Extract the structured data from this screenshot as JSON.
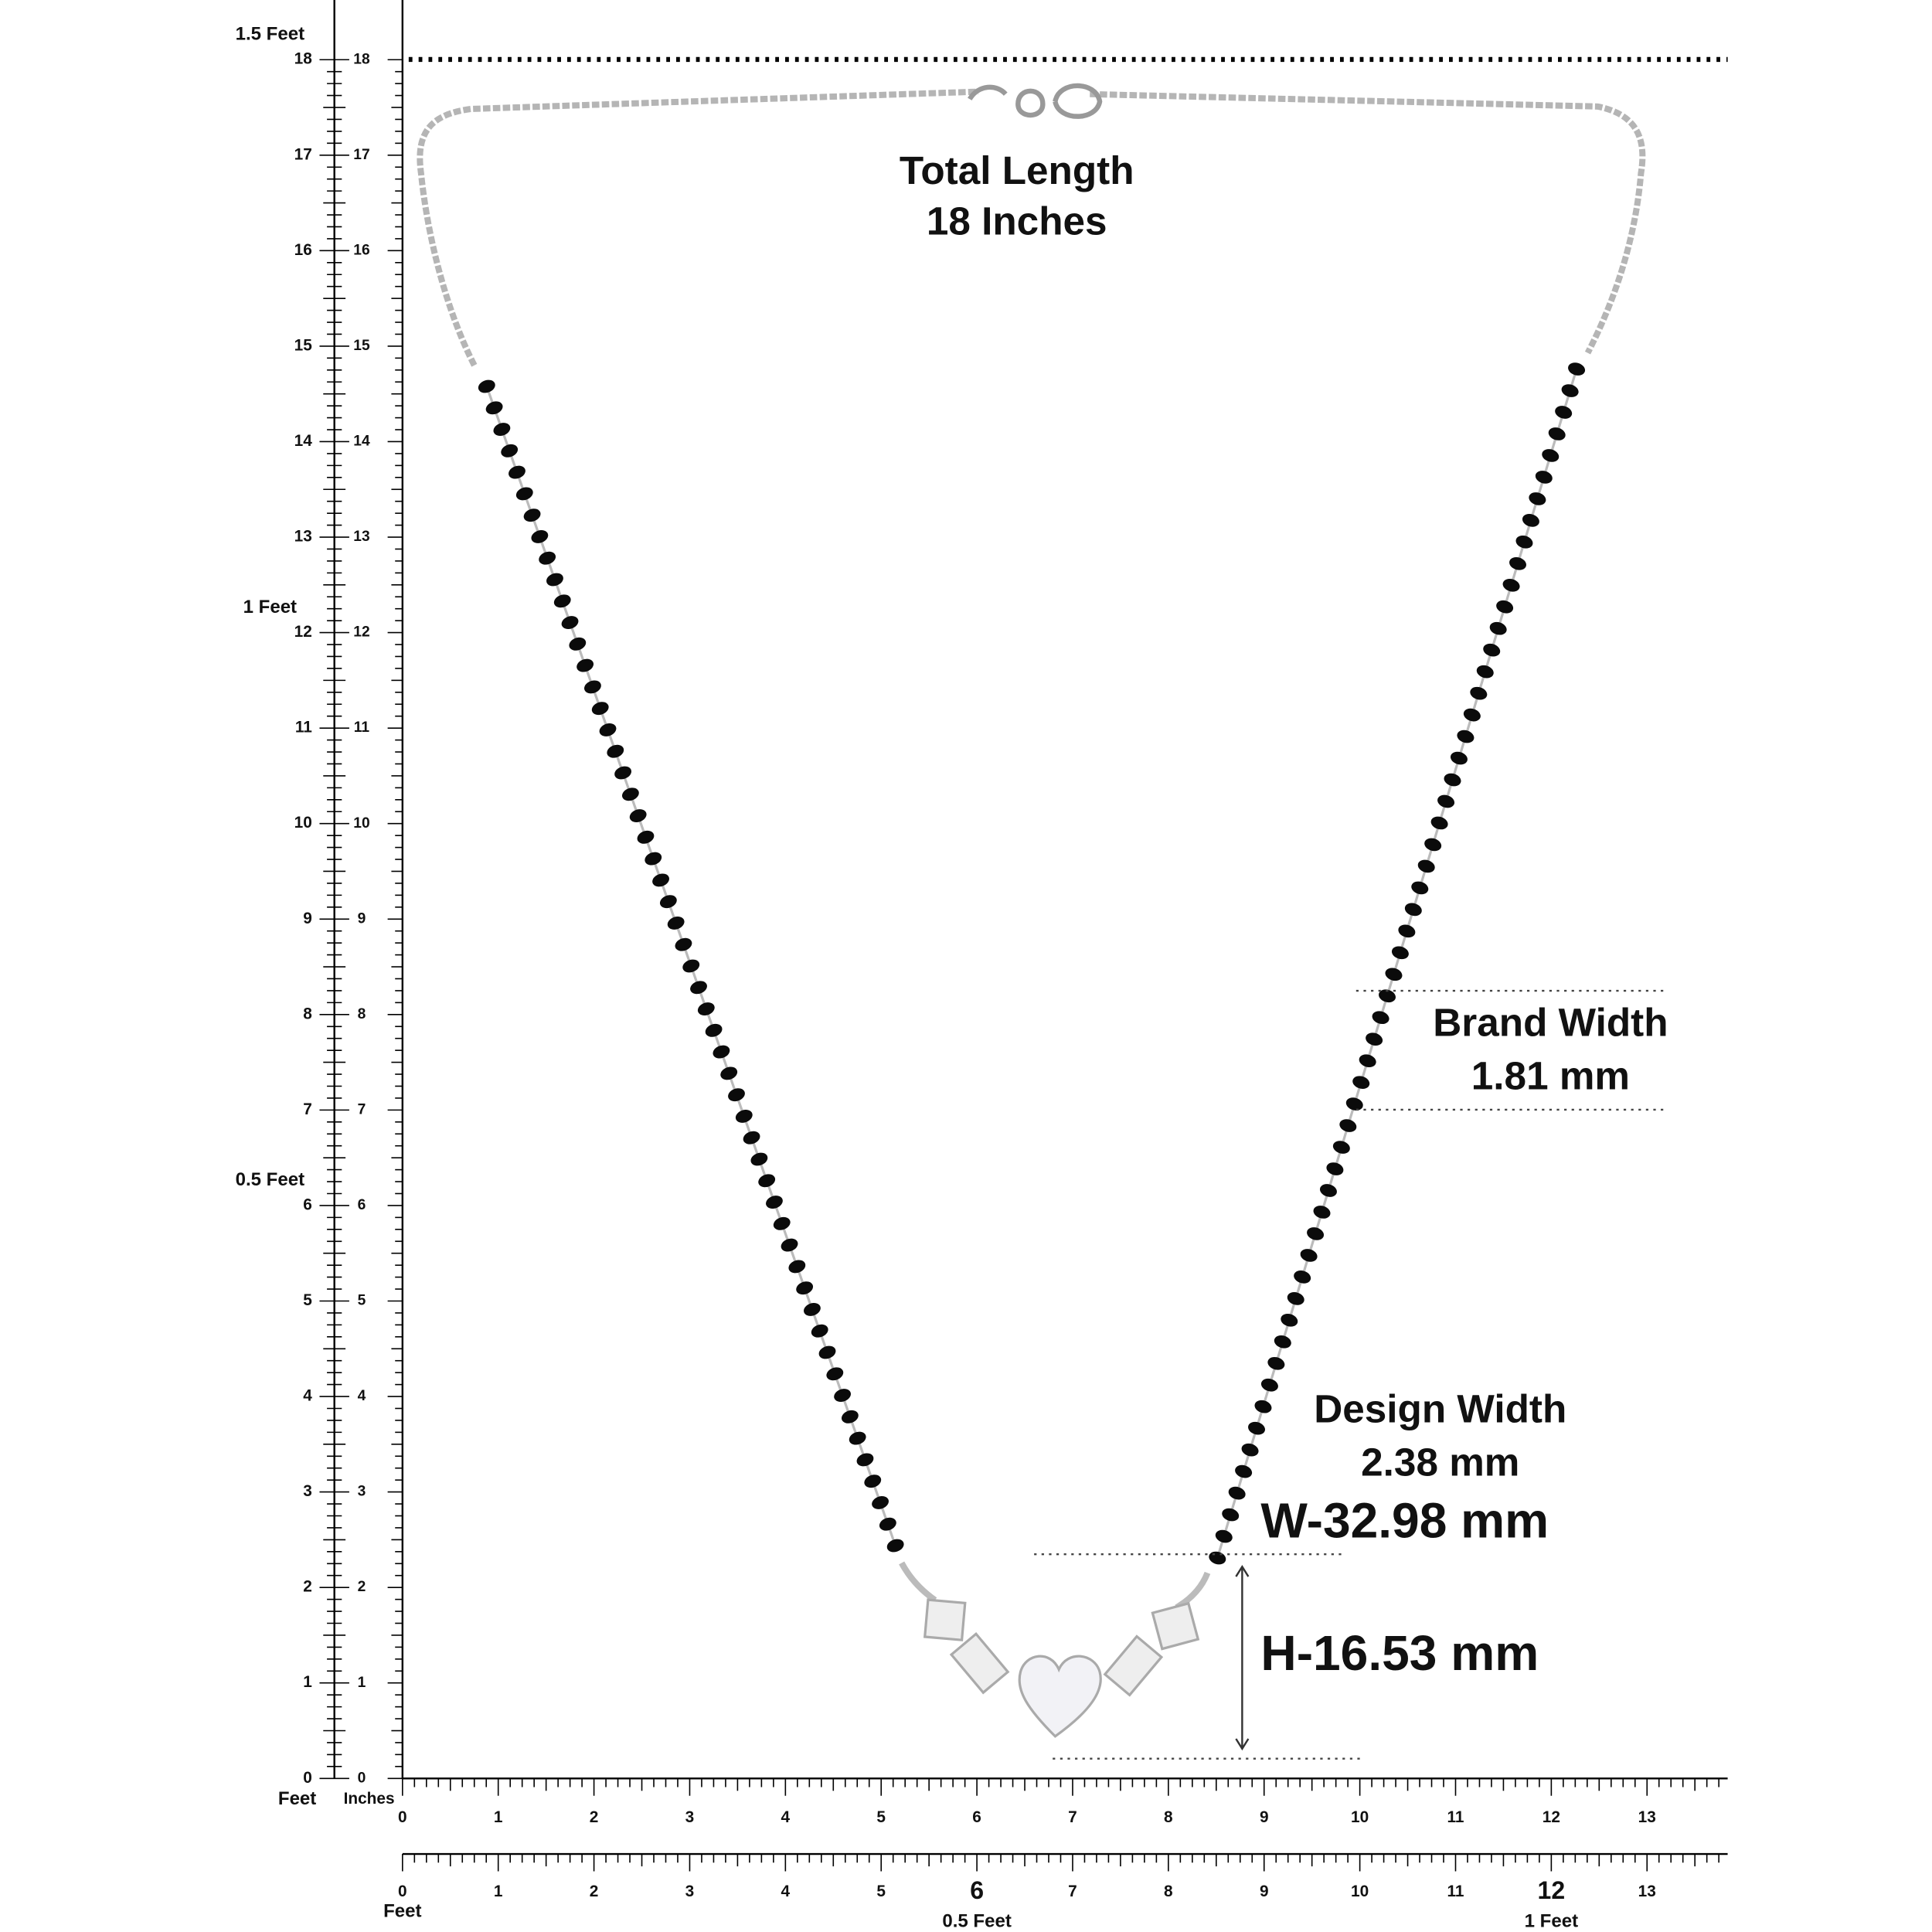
{
  "labels": {
    "total_length_title": "Total Length",
    "total_length_value": "18 Inches",
    "band_width_title": "Brand Width",
    "band_width_value": "1.81 mm",
    "design_width_title": "Design Width",
    "design_width_value": "2.38 mm",
    "width": "W-32.98 mm",
    "height": "H-16.53 mm"
  },
  "left_ruler": {
    "outer_numbers": [
      0,
      1,
      2,
      3,
      4,
      5,
      6,
      7,
      8,
      9,
      10,
      11,
      12,
      13,
      14,
      15,
      16,
      17,
      18
    ],
    "inner_numbers": [
      0,
      1,
      2,
      3,
      4,
      5,
      6,
      7,
      8,
      9,
      10,
      11,
      12,
      13,
      14,
      15,
      16,
      17,
      18
    ],
    "outer_unit": "Feet",
    "inner_unit": "Inches",
    "feet_marks": [
      {
        "value": 6,
        "label": "0.5 Feet"
      },
      {
        "value": 12,
        "label": "1 Feet"
      },
      {
        "value": 18,
        "label": "1.5 Feet"
      }
    ]
  },
  "bottom_ruler": {
    "top_numbers": [
      0,
      1,
      2,
      3,
      4,
      5,
      6,
      7,
      8,
      9,
      10,
      11,
      12,
      13
    ],
    "bottom_numbers": [
      0,
      1,
      2,
      3,
      4,
      5,
      6,
      7,
      8,
      9,
      10,
      11,
      12,
      13
    ],
    "unit": "Feet",
    "feet_marks": [
      {
        "value": 6,
        "label": "0.5 Feet"
      },
      {
        "value": 12,
        "label": "1 Feet"
      }
    ]
  }
}
